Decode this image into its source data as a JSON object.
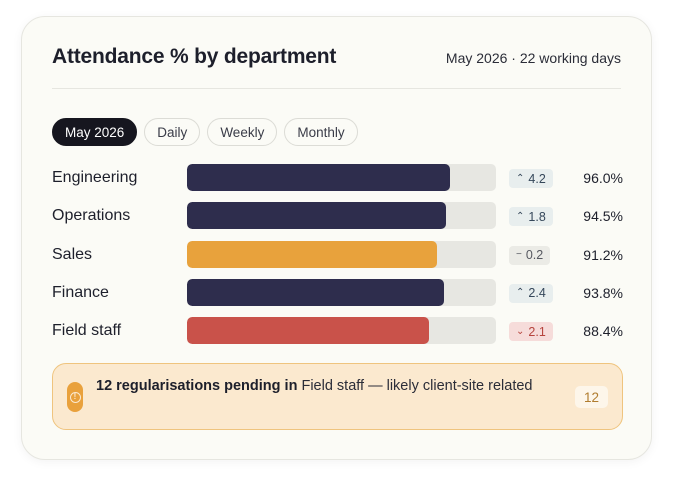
{
  "header": {
    "title": "Attendance % by department",
    "period": "May 2026 · 22 working days"
  },
  "tabs": [
    {
      "label": "May 2026",
      "active": true
    },
    {
      "label": "Daily",
      "active": false
    },
    {
      "label": "Weekly",
      "active": false
    },
    {
      "label": "Monthly",
      "active": false
    }
  ],
  "departments": [
    {
      "name": "Engineering",
      "attendance_pct": 96.0,
      "pct_label": "96.0%",
      "delta": "4.2",
      "trend": "up",
      "color": "#2e2d4d"
    },
    {
      "name": "Operations",
      "attendance_pct": 94.5,
      "pct_label": "94.5%",
      "delta": "1.8",
      "trend": "up",
      "color": "#2e2d4d"
    },
    {
      "name": "Sales",
      "attendance_pct": 91.2,
      "pct_label": "91.2%",
      "delta": "0.2",
      "trend": "flat",
      "color": "#e8a23c"
    },
    {
      "name": "Finance",
      "attendance_pct": 93.8,
      "pct_label": "93.8%",
      "delta": "2.4",
      "trend": "up",
      "color": "#2e2d4d"
    },
    {
      "name": "Field staff",
      "attendance_pct": 88.4,
      "pct_label": "88.4%",
      "delta": "2.1",
      "trend": "down",
      "color": "#c9524a"
    }
  ],
  "alert": {
    "icon": "alert-circle-icon",
    "bold_text": "12 regularisations pending in",
    "text": " Field staff — likely client-site related",
    "count": "12"
  },
  "colors": {
    "accent_navy": "#2e2d4d",
    "warning_amber": "#e8a23c",
    "danger_red": "#c9524a"
  }
}
